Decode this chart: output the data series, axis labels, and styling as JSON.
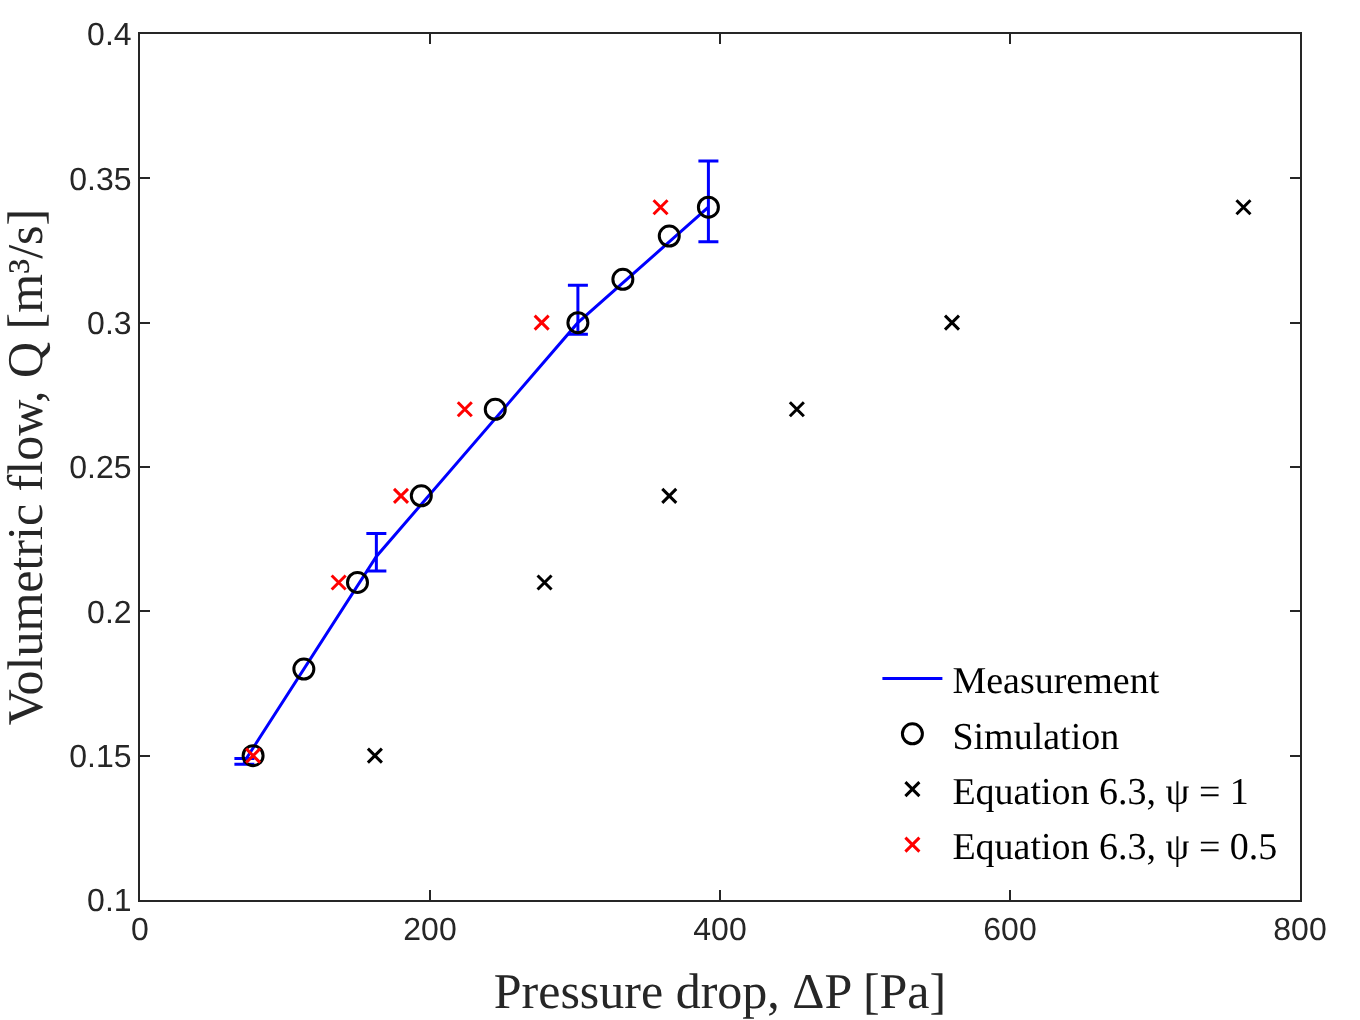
{
  "chart_data": {
    "type": "scatter",
    "xlabel": "Pressure drop, ΔP [Pa]",
    "ylabel": "Volumetric flow, Q [m³/s]",
    "xlim": [
      0,
      800
    ],
    "xticks": [
      0,
      200,
      400,
      600,
      800
    ],
    "ylim": [
      0.1,
      0.4
    ],
    "yticks": [
      0.1,
      0.15,
      0.2,
      0.25,
      0.3,
      0.35,
      0.4
    ],
    "grid": false,
    "legend": "bottom right",
    "series": [
      {
        "name": "Measurement",
        "type": "line",
        "color": "#0000ff",
        "marker": "none",
        "x": [
          72,
          163,
          302,
          392
        ],
        "values": [
          0.148,
          0.219,
          0.3,
          0.34
        ],
        "errors": [
          [
            0.147,
            0.149
          ],
          [
            0.214,
            0.227
          ],
          [
            0.296,
            0.313
          ],
          [
            0.328,
            0.356
          ]
        ]
      },
      {
        "name": "Simulation",
        "color": "#000000",
        "marker": "circle",
        "x": [
          78,
          113,
          150,
          194,
          245,
          302,
          333,
          365,
          392
        ],
        "values": [
          0.15,
          0.18,
          0.21,
          0.24,
          0.27,
          0.3,
          0.315,
          0.33,
          0.34
        ]
      },
      {
        "name": "Equation 6.3, ψ = 1",
        "color": "#000000",
        "marker": "cross",
        "x": [
          162,
          279,
          365,
          453,
          560,
          761
        ],
        "values": [
          0.15,
          0.21,
          0.24,
          0.27,
          0.3,
          0.34
        ]
      },
      {
        "name": "Equation 6.3, ψ = 0.5",
        "color": "#ff0000",
        "marker": "cross",
        "x": [
          78,
          137,
          180,
          224,
          277,
          359
        ],
        "values": [
          0.15,
          0.21,
          0.24,
          0.27,
          0.3,
          0.34
        ]
      }
    ]
  }
}
